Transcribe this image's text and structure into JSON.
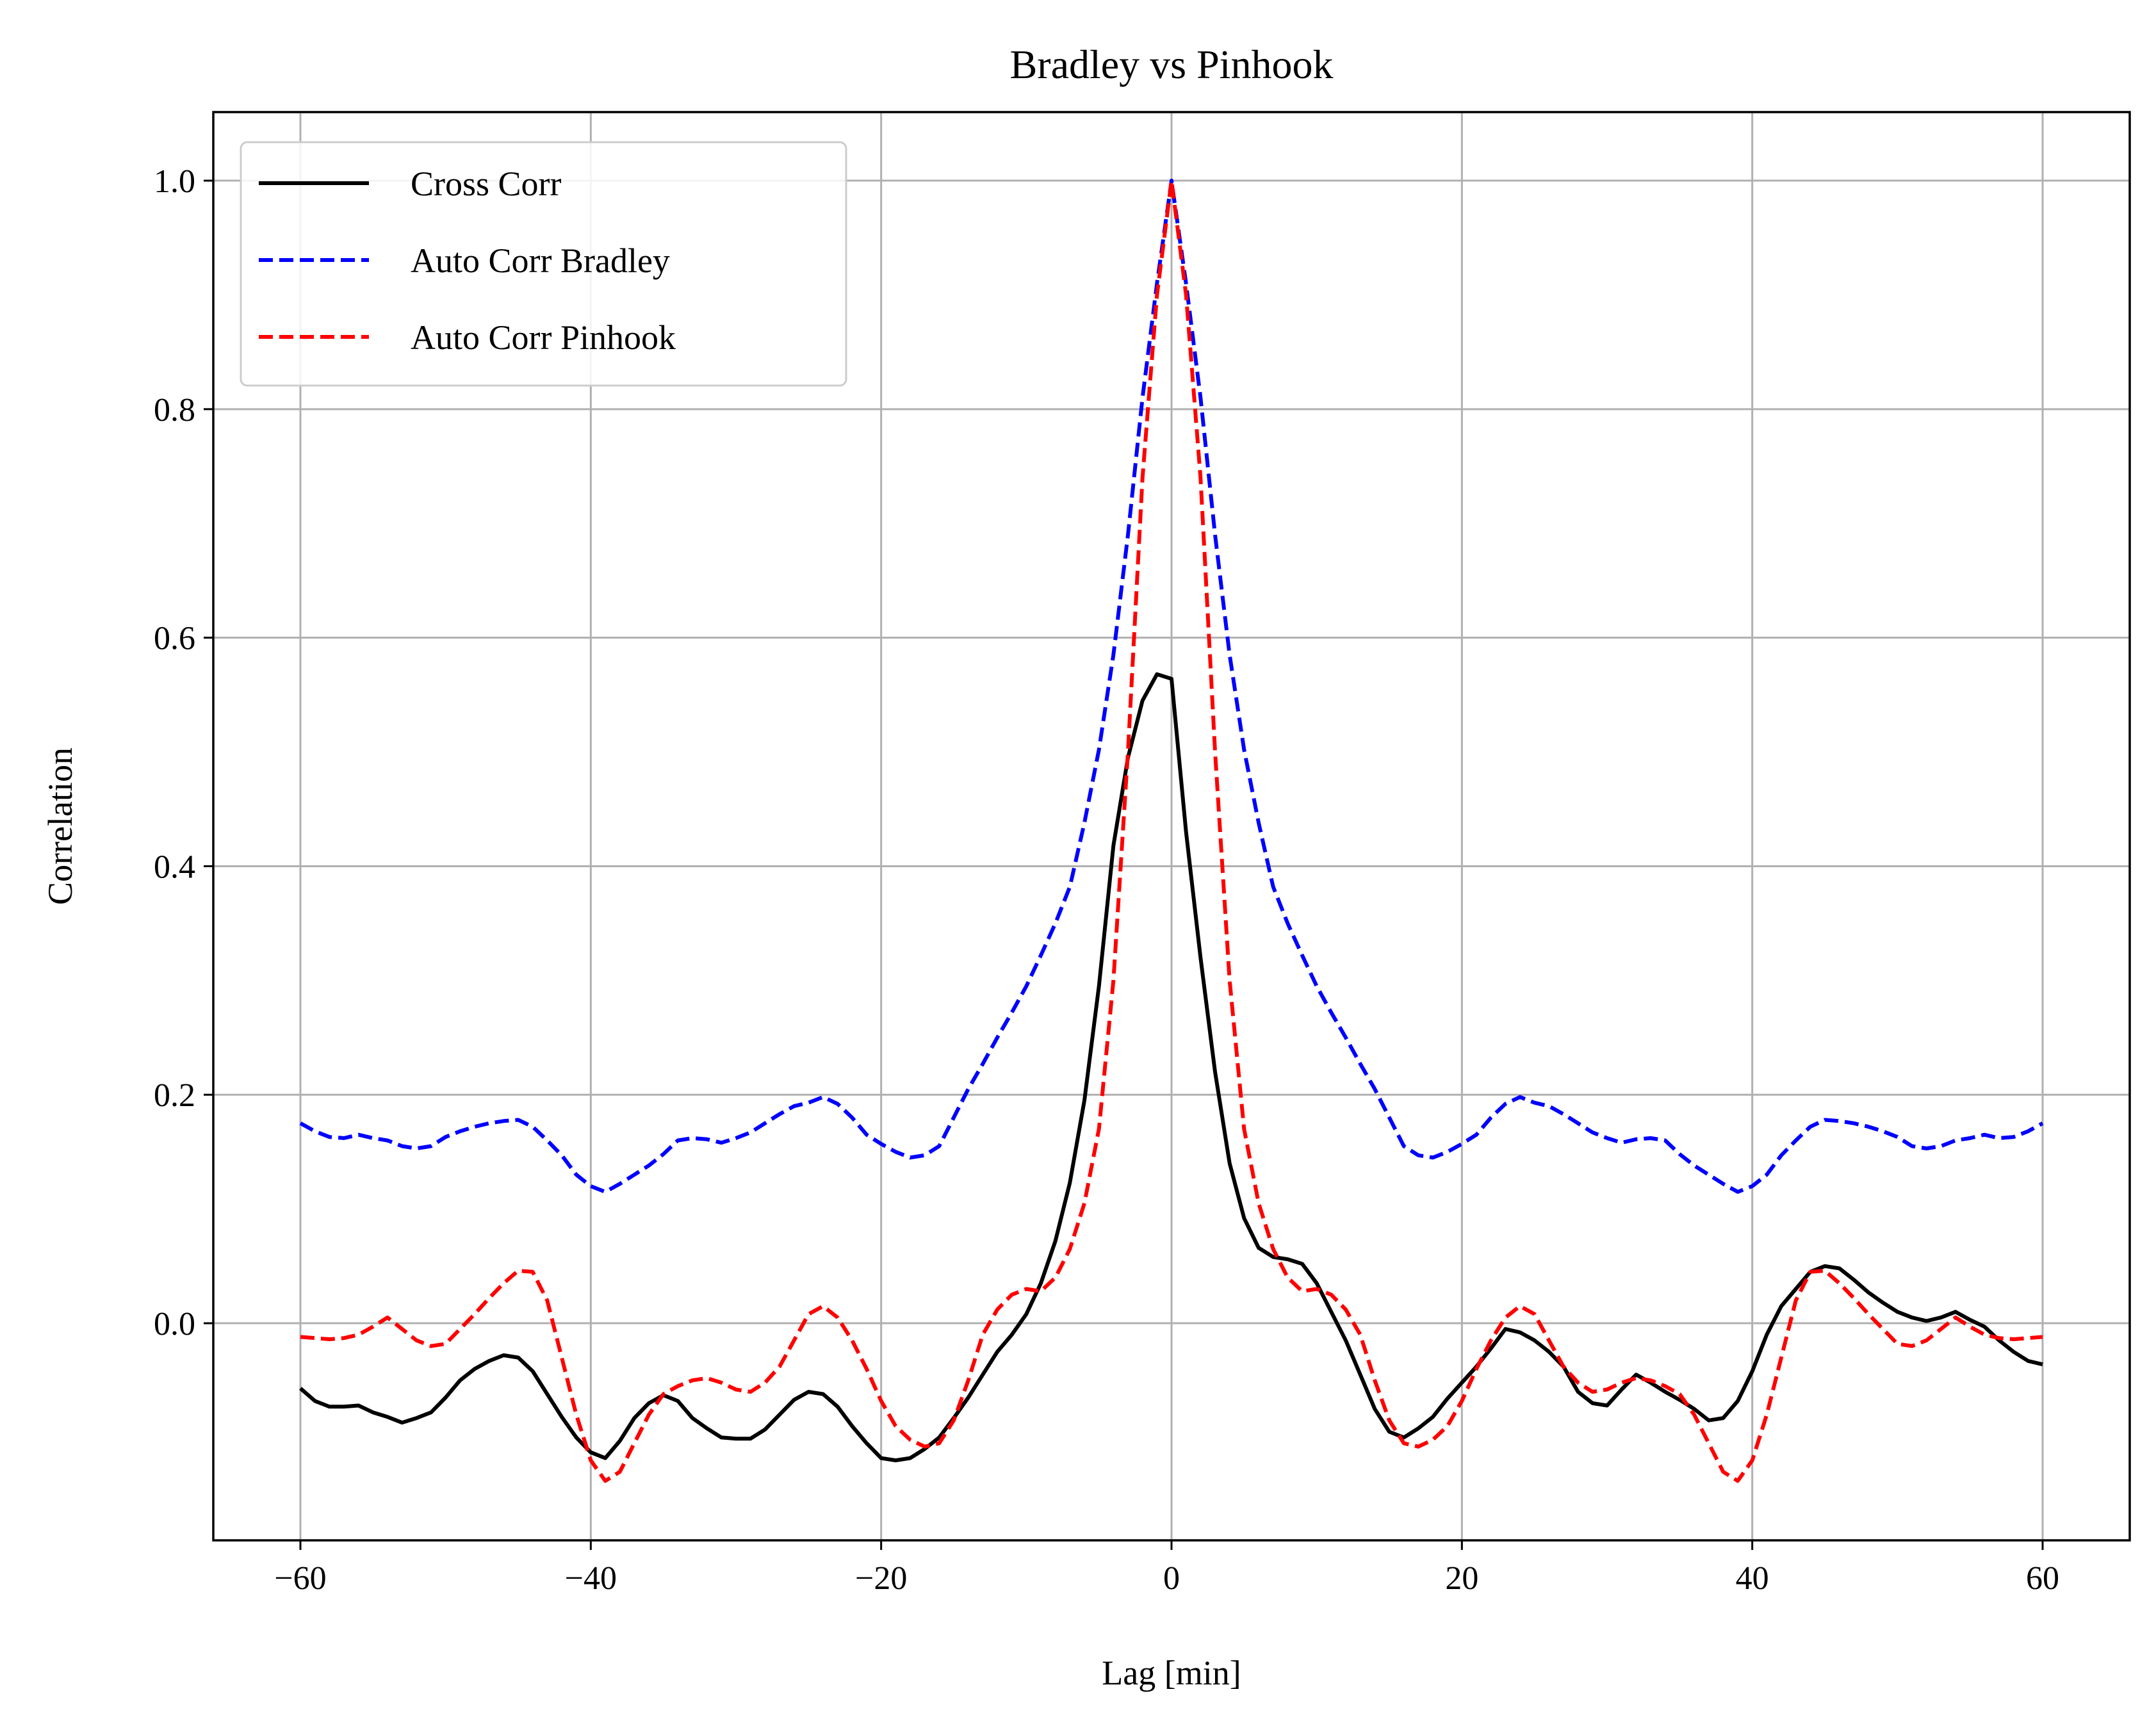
{
  "chart_data": {
    "type": "line",
    "title": "Bradley vs Pinhook",
    "xlabel": "Lag [min]",
    "ylabel": "Correlation",
    "xlim": [
      -66,
      66
    ],
    "ylim": [
      -0.19,
      1.06
    ],
    "xticks": [
      -60,
      -40,
      -20,
      0,
      20,
      40,
      60
    ],
    "xtick_labels": [
      "−60",
      "−40",
      "−20",
      "0",
      "20",
      "40",
      "60"
    ],
    "yticks": [
      0.0,
      0.2,
      0.4,
      0.6,
      0.8,
      1.0
    ],
    "ytick_labels": [
      "0.0",
      "0.2",
      "0.4",
      "0.6",
      "0.8",
      "1.0"
    ],
    "grid": true,
    "legend_position": "upper-left",
    "series": [
      {
        "name": "Cross Corr",
        "color": "#000000",
        "style": "solid",
        "x": [
          -60,
          -59,
          -58,
          -57,
          -56,
          -55,
          -54,
          -53,
          -52,
          -51,
          -50,
          -49,
          -48,
          -47,
          -46,
          -45,
          -44,
          -43,
          -42,
          -41,
          -40,
          -39,
          -38,
          -37,
          -36,
          -35,
          -34,
          -33,
          -32,
          -31,
          -30,
          -29,
          -28,
          -27,
          -26,
          -25,
          -24,
          -23,
          -22,
          -21,
          -20,
          -19,
          -18,
          -17,
          -16,
          -15,
          -14,
          -13,
          -12,
          -11,
          -10,
          -9,
          -8,
          -7,
          -6,
          -5,
          -4,
          -3,
          -2,
          -1,
          0,
          1,
          2,
          3,
          4,
          5,
          6,
          7,
          8,
          9,
          10,
          11,
          12,
          13,
          14,
          15,
          16,
          17,
          18,
          19,
          20,
          21,
          22,
          23,
          24,
          25,
          26,
          27,
          28,
          29,
          30,
          31,
          32,
          33,
          34,
          35,
          36,
          37,
          38,
          39,
          40,
          41,
          42,
          43,
          44,
          45,
          46,
          47,
          48,
          49,
          50,
          51,
          52,
          53,
          54,
          55,
          56,
          57,
          58,
          59,
          60
        ],
        "y": [
          -0.057,
          -0.068,
          -0.073,
          -0.073,
          -0.072,
          -0.078,
          -0.082,
          -0.087,
          -0.083,
          -0.078,
          -0.065,
          -0.05,
          -0.04,
          -0.033,
          -0.028,
          -0.03,
          -0.042,
          -0.062,
          -0.082,
          -0.1,
          -0.113,
          -0.118,
          -0.103,
          -0.083,
          -0.07,
          -0.063,
          -0.068,
          -0.083,
          -0.092,
          -0.1,
          -0.101,
          -0.101,
          -0.093,
          -0.08,
          -0.067,
          -0.06,
          -0.062,
          -0.073,
          -0.09,
          -0.105,
          -0.118,
          -0.12,
          -0.118,
          -0.11,
          -0.1,
          -0.083,
          -0.065,
          -0.045,
          -0.025,
          -0.01,
          0.008,
          0.035,
          0.072,
          0.123,
          0.195,
          0.295,
          0.418,
          0.495,
          0.545,
          0.568,
          0.564,
          0.43,
          0.32,
          0.22,
          0.14,
          0.092,
          0.066,
          0.058,
          0.056,
          0.052,
          0.035,
          0.01,
          -0.015,
          -0.045,
          -0.075,
          -0.095,
          -0.1,
          -0.092,
          -0.082,
          -0.066,
          -0.052,
          -0.038,
          -0.022,
          -0.005,
          -0.008,
          -0.015,
          -0.025,
          -0.038,
          -0.06,
          -0.07,
          -0.072,
          -0.058,
          -0.045,
          -0.052,
          -0.06,
          -0.067,
          -0.075,
          -0.085,
          -0.083,
          -0.068,
          -0.042,
          -0.01,
          0.015,
          0.03,
          0.045,
          0.05,
          0.048,
          0.038,
          0.027,
          0.018,
          0.01,
          0.005,
          0.002,
          0.005,
          0.01,
          0.003,
          -0.003,
          -0.015,
          -0.025,
          -0.033,
          -0.036
        ]
      },
      {
        "name": "Auto Corr Bradley",
        "color": "#0000ff",
        "style": "dashed",
        "x": [
          -60,
          -59,
          -58,
          -57,
          -56,
          -55,
          -54,
          -53,
          -52,
          -51,
          -50,
          -49,
          -48,
          -47,
          -46,
          -45,
          -44,
          -43,
          -42,
          -41,
          -40,
          -39,
          -38,
          -37,
          -36,
          -35,
          -34,
          -33,
          -32,
          -31,
          -30,
          -29,
          -28,
          -27,
          -26,
          -25,
          -24,
          -23,
          -22,
          -21,
          -20,
          -19,
          -18,
          -17,
          -16,
          -15,
          -14,
          -13,
          -12,
          -11,
          -10,
          -9,
          -8,
          -7,
          -6,
          -5,
          -4,
          -3,
          -2,
          -1,
          0,
          1,
          2,
          3,
          4,
          5,
          6,
          7,
          8,
          9,
          10,
          11,
          12,
          13,
          14,
          15,
          16,
          17,
          18,
          19,
          20,
          21,
          22,
          23,
          24,
          25,
          26,
          27,
          28,
          29,
          30,
          31,
          32,
          33,
          34,
          35,
          36,
          37,
          38,
          39,
          40,
          41,
          42,
          43,
          44,
          45,
          46,
          47,
          48,
          49,
          50,
          51,
          52,
          53,
          54,
          55,
          56,
          57,
          58,
          59,
          60
        ],
        "y": [
          0.175,
          0.168,
          0.163,
          0.162,
          0.165,
          0.162,
          0.16,
          0.155,
          0.153,
          0.155,
          0.163,
          0.168,
          0.172,
          0.175,
          0.177,
          0.178,
          0.172,
          0.16,
          0.147,
          0.13,
          0.12,
          0.115,
          0.122,
          0.13,
          0.138,
          0.148,
          0.16,
          0.162,
          0.161,
          0.158,
          0.162,
          0.167,
          0.175,
          0.183,
          0.19,
          0.193,
          0.198,
          0.192,
          0.18,
          0.165,
          0.157,
          0.15,
          0.145,
          0.147,
          0.155,
          0.18,
          0.205,
          0.227,
          0.25,
          0.272,
          0.295,
          0.322,
          0.35,
          0.382,
          0.438,
          0.502,
          0.585,
          0.69,
          0.81,
          0.91,
          1.0,
          0.91,
          0.81,
          0.69,
          0.585,
          0.502,
          0.438,
          0.382,
          0.35,
          0.322,
          0.295,
          0.272,
          0.25,
          0.227,
          0.205,
          0.18,
          0.155,
          0.147,
          0.145,
          0.15,
          0.157,
          0.165,
          0.18,
          0.192,
          0.198,
          0.193,
          0.19,
          0.183,
          0.175,
          0.167,
          0.162,
          0.158,
          0.161,
          0.162,
          0.16,
          0.148,
          0.138,
          0.13,
          0.122,
          0.115,
          0.12,
          0.13,
          0.147,
          0.16,
          0.172,
          0.178,
          0.177,
          0.175,
          0.172,
          0.168,
          0.163,
          0.155,
          0.153,
          0.155,
          0.16,
          0.162,
          0.165,
          0.162,
          0.163,
          0.168,
          0.175
        ]
      },
      {
        "name": "Auto Corr Pinhook",
        "color": "#ff0000",
        "style": "dashed",
        "x": [
          -60,
          -59,
          -58,
          -57,
          -56,
          -55,
          -54,
          -53,
          -52,
          -51,
          -50,
          -49,
          -48,
          -47,
          -46,
          -45,
          -44,
          -43,
          -42,
          -41,
          -40,
          -39,
          -38,
          -37,
          -36,
          -35,
          -34,
          -33,
          -32,
          -31,
          -30,
          -29,
          -28,
          -27,
          -26,
          -25,
          -24,
          -23,
          -22,
          -21,
          -20,
          -19,
          -18,
          -17,
          -16,
          -15,
          -14,
          -13,
          -12,
          -11,
          -10,
          -9,
          -8,
          -7,
          -6,
          -5,
          -4,
          -3,
          -2,
          -1,
          0,
          1,
          2,
          3,
          4,
          5,
          6,
          7,
          8,
          9,
          10,
          11,
          12,
          13,
          14,
          15,
          16,
          17,
          18,
          19,
          20,
          21,
          22,
          23,
          24,
          25,
          26,
          27,
          28,
          29,
          30,
          31,
          32,
          33,
          34,
          35,
          36,
          37,
          38,
          39,
          40,
          41,
          42,
          43,
          44,
          45,
          46,
          47,
          48,
          49,
          50,
          51,
          52,
          53,
          54,
          55,
          56,
          57,
          58,
          59,
          60
        ],
        "y": [
          -0.012,
          -0.013,
          -0.014,
          -0.013,
          -0.01,
          -0.003,
          0.005,
          -0.005,
          -0.015,
          -0.02,
          -0.018,
          -0.005,
          0.008,
          0.022,
          0.035,
          0.046,
          0.045,
          0.02,
          -0.03,
          -0.08,
          -0.12,
          -0.138,
          -0.13,
          -0.105,
          -0.08,
          -0.062,
          -0.055,
          -0.05,
          -0.048,
          -0.052,
          -0.058,
          -0.06,
          -0.052,
          -0.038,
          -0.015,
          0.008,
          0.015,
          0.005,
          -0.015,
          -0.04,
          -0.068,
          -0.09,
          -0.102,
          -0.108,
          -0.105,
          -0.085,
          -0.05,
          -0.01,
          0.012,
          0.025,
          0.03,
          0.028,
          0.04,
          0.065,
          0.105,
          0.17,
          0.3,
          0.5,
          0.74,
          0.9,
          1.0,
          0.9,
          0.74,
          0.5,
          0.3,
          0.17,
          0.105,
          0.065,
          0.04,
          0.028,
          0.03,
          0.025,
          0.012,
          -0.01,
          -0.05,
          -0.085,
          -0.105,
          -0.108,
          -0.102,
          -0.09,
          -0.068,
          -0.04,
          -0.015,
          0.005,
          0.015,
          0.008,
          -0.015,
          -0.038,
          -0.052,
          -0.06,
          -0.058,
          -0.052,
          -0.048,
          -0.05,
          -0.055,
          -0.062,
          -0.08,
          -0.105,
          -0.13,
          -0.138,
          -0.12,
          -0.08,
          -0.03,
          0.02,
          0.045,
          0.046,
          0.035,
          0.022,
          0.008,
          -0.005,
          -0.018,
          -0.02,
          -0.015,
          -0.005,
          0.005,
          -0.003,
          -0.01,
          -0.013,
          -0.014,
          -0.013,
          -0.012
        ]
      }
    ]
  }
}
